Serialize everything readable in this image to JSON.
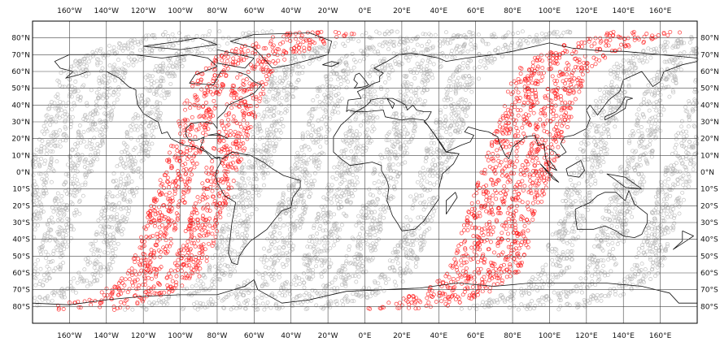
{
  "map": {
    "projection": "equirectangular",
    "lon_range": [
      -180,
      180
    ],
    "lat_range": [
      -90,
      90
    ],
    "colors": {
      "gray_points": "#b9b9b9",
      "red_points": "#ff1a1a",
      "grid": "#444444",
      "coast": "#111111"
    },
    "x_ticks": [
      {
        "lon": -160,
        "label": "160°W"
      },
      {
        "lon": -140,
        "label": "140°W"
      },
      {
        "lon": -120,
        "label": "120°W"
      },
      {
        "lon": -100,
        "label": "100°W"
      },
      {
        "lon": -80,
        "label": "80°W"
      },
      {
        "lon": -60,
        "label": "60°W"
      },
      {
        "lon": -40,
        "label": "40°W"
      },
      {
        "lon": -20,
        "label": "20°W"
      },
      {
        "lon": 0,
        "label": "0°E"
      },
      {
        "lon": 20,
        "label": "20°E"
      },
      {
        "lon": 40,
        "label": "40°E"
      },
      {
        "lon": 60,
        "label": "60°E"
      },
      {
        "lon": 80,
        "label": "80°E"
      },
      {
        "lon": 100,
        "label": "100°E"
      },
      {
        "lon": 120,
        "label": "120°E"
      },
      {
        "lon": 140,
        "label": "140°E"
      },
      {
        "lon": 160,
        "label": "160°E"
      }
    ],
    "y_ticks": [
      {
        "lat": 80,
        "label": "80°N"
      },
      {
        "lat": 70,
        "label": "70°N"
      },
      {
        "lat": 60,
        "label": "60°N"
      },
      {
        "lat": 50,
        "label": "50°N"
      },
      {
        "lat": 40,
        "label": "40°N"
      },
      {
        "lat": 30,
        "label": "30°N"
      },
      {
        "lat": 20,
        "label": "20°N"
      },
      {
        "lat": 10,
        "label": "10°N"
      },
      {
        "lat": 0,
        "label": "0°N"
      },
      {
        "lat": -10,
        "label": "10°S"
      },
      {
        "lat": -20,
        "label": "20°S"
      },
      {
        "lat": -30,
        "label": "30°S"
      },
      {
        "lat": -40,
        "label": "40°S"
      },
      {
        "lat": -50,
        "label": "50°S"
      },
      {
        "lat": -60,
        "label": "60°S"
      },
      {
        "lat": -70,
        "label": "70°S"
      },
      {
        "lat": -80,
        "label": "80°S"
      }
    ],
    "gray_swaths": [
      {
        "lon_at_equator": -175
      },
      {
        "lon_at_equator": -155
      },
      {
        "lon_at_equator": -128
      },
      {
        "lon_at_equator": -60
      },
      {
        "lon_at_equator": -33
      },
      {
        "lon_at_equator": -10
      },
      {
        "lon_at_equator": 12
      },
      {
        "lon_at_equator": 37
      },
      {
        "lon_at_equator": 120
      },
      {
        "lon_at_equator": 145
      },
      {
        "lon_at_equator": 170
      }
    ],
    "red_swaths": [
      {
        "lon_at_equator": -101
      },
      {
        "lon_at_equator": -78
      },
      {
        "lon_at_equator": 72
      },
      {
        "lon_at_equator": 93
      }
    ],
    "coastlines": [
      [
        [
          -168,
          66
        ],
        [
          -160,
          70
        ],
        [
          -140,
          70
        ],
        [
          -125,
          70
        ],
        [
          -110,
          68
        ],
        [
          -95,
          70
        ],
        [
          -85,
          68
        ],
        [
          -80,
          63
        ],
        [
          -92,
          58
        ],
        [
          -95,
          53
        ],
        [
          -82,
          52
        ],
        [
          -78,
          60
        ],
        [
          -70,
          60
        ],
        [
          -64,
          58
        ],
        [
          -60,
          54
        ],
        [
          -56,
          52
        ],
        [
          -60,
          47
        ],
        [
          -66,
          44
        ],
        [
          -70,
          42
        ],
        [
          -74,
          40
        ],
        [
          -76,
          36
        ],
        [
          -80,
          32
        ],
        [
          -80,
          26
        ],
        [
          -82,
          29
        ],
        [
          -88,
          30
        ],
        [
          -94,
          29
        ],
        [
          -97,
          26
        ],
        [
          -97,
          22
        ],
        [
          -95,
          19
        ],
        [
          -91,
          19
        ],
        [
          -87,
          21
        ],
        [
          -89,
          15
        ],
        [
          -84,
          11
        ],
        [
          -80,
          8
        ],
        [
          -79,
          9
        ],
        [
          -83,
          8
        ],
        [
          -86,
          12
        ],
        [
          -92,
          15
        ],
        [
          -98,
          16
        ],
        [
          -105,
          20
        ],
        [
          -107,
          24
        ],
        [
          -110,
          23
        ],
        [
          -112,
          30
        ],
        [
          -114,
          31
        ],
        [
          -117,
          33
        ],
        [
          -120,
          35
        ],
        [
          -123,
          40
        ],
        [
          -124,
          46
        ],
        [
          -124,
          49
        ],
        [
          -128,
          51
        ],
        [
          -133,
          56
        ],
        [
          -140,
          60
        ],
        [
          -150,
          60
        ],
        [
          -155,
          58
        ],
        [
          -162,
          56
        ],
        [
          -158,
          60
        ],
        [
          -165,
          62
        ],
        [
          -168,
          66
        ]
      ],
      [
        [
          -79,
          9
        ],
        [
          -77,
          8
        ],
        [
          -72,
          12
        ],
        [
          -62,
          10
        ],
        [
          -55,
          6
        ],
        [
          -50,
          2
        ],
        [
          -44,
          -2
        ],
        [
          -35,
          -5
        ],
        [
          -35,
          -9
        ],
        [
          -39,
          -15
        ],
        [
          -40,
          -21
        ],
        [
          -45,
          -23
        ],
        [
          -48,
          -27
        ],
        [
          -53,
          -34
        ],
        [
          -58,
          -38
        ],
        [
          -62,
          -41
        ],
        [
          -65,
          -45
        ],
        [
          -68,
          -50
        ],
        [
          -69,
          -55
        ],
        [
          -72,
          -54
        ],
        [
          -74,
          -48
        ],
        [
          -73,
          -40
        ],
        [
          -72,
          -30
        ],
        [
          -70,
          -18
        ],
        [
          -76,
          -14
        ],
        [
          -80,
          -6
        ],
        [
          -81,
          -2
        ],
        [
          -80,
          2
        ],
        [
          -78,
          6
        ],
        [
          -79,
          9
        ]
      ],
      [
        [
          -73,
          78
        ],
        [
          -60,
          82
        ],
        [
          -30,
          83
        ],
        [
          -18,
          78
        ],
        [
          -20,
          70
        ],
        [
          -40,
          64
        ],
        [
          -50,
          62
        ],
        [
          -55,
          68
        ],
        [
          -60,
          74
        ],
        [
          -73,
          78
        ]
      ],
      [
        [
          -10,
          36
        ],
        [
          -9,
          43
        ],
        [
          -2,
          44
        ],
        [
          -4,
          48
        ],
        [
          2,
          51
        ],
        [
          5,
          53
        ],
        [
          8,
          54
        ],
        [
          8,
          57
        ],
        [
          10,
          59
        ],
        [
          5,
          62
        ],
        [
          12,
          66
        ],
        [
          18,
          70
        ],
        [
          25,
          71
        ],
        [
          30,
          70
        ],
        [
          40,
          68
        ],
        [
          44,
          66
        ],
        [
          55,
          68
        ],
        [
          70,
          70
        ],
        [
          80,
          72
        ],
        [
          100,
          77
        ],
        [
          112,
          74
        ],
        [
          130,
          72
        ],
        [
          140,
          72
        ],
        [
          160,
          70
        ],
        [
          170,
          69
        ],
        [
          180,
          68
        ],
        [
          180,
          66
        ],
        [
          172,
          64
        ],
        [
          162,
          60
        ],
        [
          160,
          54
        ],
        [
          156,
          51
        ],
        [
          150,
          60
        ],
        [
          140,
          55
        ],
        [
          138,
          48
        ],
        [
          132,
          43
        ],
        [
          128,
          37
        ],
        [
          126,
          34
        ],
        [
          122,
          40
        ],
        [
          120,
          37
        ],
        [
          122,
          32
        ],
        [
          120,
          26
        ],
        [
          113,
          22
        ],
        [
          108,
          21
        ],
        [
          106,
          17
        ],
        [
          109,
          12
        ],
        [
          105,
          9
        ],
        [
          103,
          12
        ],
        [
          100,
          14
        ],
        [
          100,
          7
        ],
        [
          104,
          1
        ],
        [
          100,
          3
        ],
        [
          98,
          8
        ],
        [
          97,
          17
        ],
        [
          94,
          16
        ],
        [
          92,
          22
        ],
        [
          87,
          21
        ],
        [
          80,
          15
        ],
        [
          78,
          8
        ],
        [
          76,
          10
        ],
        [
          73,
          17
        ],
        [
          72,
          21
        ],
        [
          67,
          24
        ],
        [
          62,
          25
        ],
        [
          56,
          27
        ],
        [
          54,
          24
        ],
        [
          59,
          22
        ],
        [
          57,
          18
        ],
        [
          52,
          16
        ],
        [
          44,
          12
        ],
        [
          42,
          16
        ],
        [
          38,
          22
        ],
        [
          34,
          28
        ],
        [
          32,
          30
        ],
        [
          34,
          32
        ],
        [
          36,
          36
        ],
        [
          32,
          36
        ],
        [
          28,
          37
        ],
        [
          26,
          40
        ],
        [
          23,
          37
        ],
        [
          22,
          40
        ],
        [
          19,
          42
        ],
        [
          15,
          44
        ],
        [
          12,
          44
        ],
        [
          16,
          41
        ],
        [
          15,
          38
        ],
        [
          12,
          44
        ],
        [
          8,
          44
        ],
        [
          3,
          43
        ],
        [
          3,
          42
        ],
        [
          0,
          39
        ],
        [
          -5,
          36
        ],
        [
          -9,
          37
        ],
        [
          -10,
          36
        ]
      ],
      [
        [
          -17,
          15
        ],
        [
          -17,
          21
        ],
        [
          -13,
          28
        ],
        [
          -9,
          32
        ],
        [
          -5,
          36
        ],
        [
          0,
          36
        ],
        [
          10,
          37
        ],
        [
          11,
          33
        ],
        [
          20,
          31
        ],
        [
          25,
          32
        ],
        [
          32,
          31
        ],
        [
          34,
          28
        ],
        [
          38,
          22
        ],
        [
          42,
          15
        ],
        [
          44,
          12
        ],
        [
          51,
          11
        ],
        [
          48,
          5
        ],
        [
          42,
          -1
        ],
        [
          40,
          -10
        ],
        [
          40,
          -16
        ],
        [
          35,
          -24
        ],
        [
          32,
          -29
        ],
        [
          27,
          -34
        ],
        [
          20,
          -35
        ],
        [
          18,
          -31
        ],
        [
          15,
          -26
        ],
        [
          12,
          -17
        ],
        [
          13,
          -9
        ],
        [
          12,
          -5
        ],
        [
          9,
          1
        ],
        [
          9,
          4
        ],
        [
          4,
          6
        ],
        [
          -2,
          5
        ],
        [
          -8,
          4
        ],
        [
          -13,
          8
        ],
        [
          -17,
          12
        ],
        [
          -17,
          15
        ]
      ],
      [
        [
          114,
          -22
        ],
        [
          114,
          -26
        ],
        [
          115,
          -34
        ],
        [
          124,
          -34
        ],
        [
          130,
          -32
        ],
        [
          136,
          -35
        ],
        [
          140,
          -38
        ],
        [
          146,
          -39
        ],
        [
          150,
          -37
        ],
        [
          153,
          -30
        ],
        [
          153,
          -25
        ],
        [
          146,
          -19
        ],
        [
          143,
          -11
        ],
        [
          141,
          -17
        ],
        [
          136,
          -12
        ],
        [
          130,
          -12
        ],
        [
          126,
          -14
        ],
        [
          122,
          -18
        ],
        [
          114,
          -22
        ]
      ],
      [
        [
          -180,
          -78
        ],
        [
          -160,
          -79
        ],
        [
          -140,
          -76
        ],
        [
          -120,
          -74
        ],
        [
          -100,
          -73
        ],
        [
          -80,
          -73
        ],
        [
          -65,
          -68
        ],
        [
          -60,
          -64
        ],
        [
          -58,
          -70
        ],
        [
          -45,
          -78
        ],
        [
          -30,
          -76
        ],
        [
          -10,
          -71
        ],
        [
          10,
          -70
        ],
        [
          30,
          -69
        ],
        [
          50,
          -66
        ],
        [
          70,
          -68
        ],
        [
          90,
          -66
        ],
        [
          110,
          -66
        ],
        [
          130,
          -66
        ],
        [
          150,
          -68
        ],
        [
          165,
          -72
        ],
        [
          170,
          -78
        ],
        [
          180,
          -78
        ]
      ],
      [
        [
          -6,
          50
        ],
        [
          0,
          51
        ],
        [
          2,
          52
        ],
        [
          0,
          55
        ],
        [
          -3,
          59
        ],
        [
          -5,
          58
        ],
        [
          -6,
          55
        ],
        [
          -4,
          53
        ],
        [
          -5,
          51
        ],
        [
          -6,
          50
        ]
      ],
      [
        [
          -23,
          64
        ],
        [
          -18,
          66
        ],
        [
          -14,
          65
        ],
        [
          -18,
          63
        ],
        [
          -23,
          64
        ]
      ],
      [
        [
          130,
          31
        ],
        [
          135,
          34
        ],
        [
          141,
          38
        ],
        [
          142,
          43
        ],
        [
          145,
          44
        ],
        [
          141,
          45
        ],
        [
          139,
          40
        ],
        [
          136,
          36
        ],
        [
          130,
          33
        ],
        [
          130,
          31
        ]
      ],
      [
        [
          44,
          -25
        ],
        [
          50,
          -15
        ],
        [
          49,
          -12
        ],
        [
          44,
          -17
        ],
        [
          44,
          -25
        ]
      ],
      [
        [
          95,
          5
        ],
        [
          105,
          -6
        ],
        [
          102,
          -4
        ],
        [
          95,
          5
        ]
      ],
      [
        [
          109,
          2
        ],
        [
          117,
          7
        ],
        [
          119,
          1
        ],
        [
          116,
          -3
        ],
        [
          110,
          -2
        ],
        [
          109,
          2
        ]
      ],
      [
        [
          131,
          -1
        ],
        [
          141,
          -3
        ],
        [
          150,
          -10
        ],
        [
          141,
          -9
        ],
        [
          135,
          -4
        ],
        [
          131,
          -1
        ]
      ],
      [
        [
          -85,
          22
        ],
        [
          -78,
          22
        ],
        [
          -74,
          20
        ],
        [
          -80,
          23
        ],
        [
          -85,
          22
        ]
      ],
      [
        [
          172,
          -35
        ],
        [
          178,
          -38
        ],
        [
          174,
          -41
        ],
        [
          167,
          -46
        ],
        [
          172,
          -41
        ],
        [
          172,
          -35
        ]
      ],
      [
        [
          -80,
          73
        ],
        [
          -60,
          68
        ],
        [
          -65,
          62
        ],
        [
          -80,
          65
        ],
        [
          -80,
          73
        ]
      ],
      [
        [
          -120,
          75
        ],
        [
          -100,
          78
        ],
        [
          -90,
          80
        ],
        [
          -80,
          76
        ],
        [
          -100,
          73
        ],
        [
          -120,
          75
        ]
      ]
    ]
  }
}
